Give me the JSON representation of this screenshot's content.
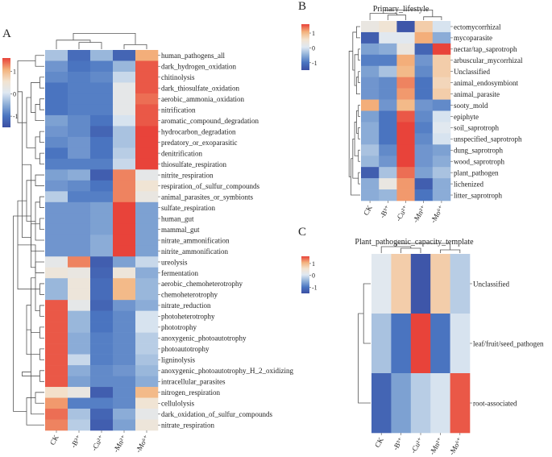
{
  "palette": [
    "#3b4fa3",
    "#4a75c1",
    "#8fb0d8",
    "#dfe8f2",
    "#f3e3cf",
    "#f3b27c",
    "#e8433a"
  ],
  "chart_data": [
    {
      "type": "heatmap",
      "panel_letter": "A",
      "title": "",
      "columns": [
        "CK",
        "-B³⁺",
        "-Cu²⁺",
        "-Mn²⁺",
        "-Mo⁶⁺"
      ],
      "rows": [
        "human_pathogens_all",
        "dark_hydrogen_oxidation",
        "chitinolysis",
        "dark_thiosulfate_oxidation",
        "aerobic_ammonia_oxidation",
        "nitrification",
        "aromatic_compound_degradation",
        "hydrocarbon_degradation",
        "predatory_or_exoparasitic",
        "denitrification",
        "thiosulfate_respiration",
        "nitrite_respiration",
        "respiration_of_sulfur_compounds",
        "animal_parasites_or_symbionts",
        "sulfate_respiration",
        "human_gut",
        "mammal_gut",
        "nitrate_ammonification",
        "nitrite_ammonification",
        "ureolysis",
        "fermentation",
        "aerobic_chemoheterotrophy",
        "chemoheterotrophy",
        "nitrate_reduction",
        "photoheterotrophy",
        "phototrophy",
        "anoxygenic_photoautotrophy",
        "photoautotrophy",
        "ligninolysis",
        "anoxygenic_photoautotrophy_H_2_oxidizing",
        "intracellular_parasites",
        "nitrogen_respiration",
        "cellulolysis",
        "dark_oxidation_of_sulfur_compounds",
        "nitrate_respiration"
      ],
      "values": [
        [
          -0.3,
          -1.1,
          -0.4,
          -1.2,
          1.1
        ],
        [
          -0.7,
          -1.0,
          -0.9,
          -0.4,
          1.5
        ],
        [
          -0.8,
          -0.9,
          -0.8,
          -0.1,
          1.5
        ],
        [
          -1.0,
          -0.9,
          -0.9,
          0.2,
          1.5
        ],
        [
          -1.0,
          -0.9,
          -0.9,
          0.2,
          1.4
        ],
        [
          -1.0,
          -0.9,
          -0.9,
          0.2,
          1.5
        ],
        [
          -0.6,
          -0.8,
          -1.0,
          0.0,
          1.5
        ],
        [
          -0.7,
          -0.8,
          -1.2,
          -0.3,
          1.6
        ],
        [
          -0.8,
          -0.7,
          -1.0,
          -0.3,
          1.6
        ],
        [
          -1.0,
          -0.7,
          -1.0,
          -0.2,
          1.6
        ],
        [
          -0.9,
          -0.9,
          -0.9,
          -0.1,
          1.6
        ],
        [
          -0.6,
          -0.5,
          -1.3,
          1.3,
          0.2
        ],
        [
          -0.7,
          -0.8,
          -1.0,
          1.3,
          0.5
        ],
        [
          -0.2,
          -0.9,
          -0.9,
          1.3,
          0.3
        ],
        [
          -0.7,
          -0.7,
          -0.6,
          1.6,
          -0.6
        ],
        [
          -0.7,
          -0.7,
          -0.6,
          1.6,
          -0.6
        ],
        [
          -0.7,
          -0.7,
          -0.6,
          1.6,
          -0.6
        ],
        [
          -0.7,
          -0.7,
          -0.5,
          1.6,
          -0.6
        ],
        [
          -0.7,
          -0.7,
          -0.5,
          1.6,
          -0.6
        ],
        [
          0.2,
          1.3,
          -1.3,
          -0.6,
          -0.1
        ],
        [
          0.4,
          0.3,
          -1.2,
          0.4,
          -0.5
        ],
        [
          -0.4,
          0.4,
          -1.1,
          1.0,
          -0.4
        ],
        [
          -0.4,
          0.4,
          -1.1,
          1.0,
          -0.4
        ],
        [
          1.5,
          0.2,
          -1.2,
          -0.7,
          -0.5
        ],
        [
          1.5,
          -0.4,
          -1.0,
          -0.8,
          0.0
        ],
        [
          1.5,
          -0.4,
          -1.0,
          -0.8,
          0.0
        ],
        [
          1.5,
          -0.5,
          -0.9,
          -0.8,
          -0.2
        ],
        [
          1.5,
          -0.5,
          -0.9,
          -0.8,
          -0.2
        ],
        [
          1.5,
          -0.1,
          -0.9,
          -0.8,
          -0.3
        ],
        [
          1.5,
          -0.5,
          -0.8,
          -0.7,
          -0.4
        ],
        [
          1.5,
          -0.6,
          -0.8,
          -0.8,
          -0.5
        ],
        [
          0.6,
          0.3,
          -1.3,
          -0.8,
          1.0
        ],
        [
          1.2,
          -0.9,
          -0.9,
          -0.8,
          0.5
        ],
        [
          1.4,
          -0.3,
          -1.2,
          -0.5,
          0.2
        ],
        [
          1.3,
          -0.2,
          -1.3,
          -0.6,
          0.4
        ]
      ],
      "legend_ticks": [
        "1",
        "0",
        "-1"
      ],
      "legend_tick_values": [
        1,
        0,
        -1
      ],
      "legend_range": [
        -1.5,
        1.6
      ]
    },
    {
      "type": "heatmap",
      "panel_letter": "B",
      "title": "Primary_lifestyle",
      "columns": [
        "CK",
        "-B³⁺",
        "-Cu²⁺",
        "-Mn²⁺",
        "-Mo⁶⁺"
      ],
      "rows": [
        "ectomycorrhizal",
        "mycoparasite",
        "nectar/tap_saprotroph",
        "arbuscular_mycorrhizal",
        "Unclassified",
        "animal_endosymbiont",
        "animal_parasite",
        "sooty_mold",
        "epiphyte",
        "soil_saprotroph",
        "unspecified_saprotroph",
        "dung_saprotroph",
        "wood_saprotroph",
        "plant_pathogen",
        "lichenized",
        "litter_saprotroph"
      ],
      "values": [
        [
          0.3,
          0.5,
          -1.4,
          0.8,
          0.0
        ],
        [
          -1.3,
          0.1,
          0.1,
          1.1,
          -0.5
        ],
        [
          -0.6,
          -0.5,
          0.3,
          -1.2,
          1.6
        ],
        [
          -0.9,
          -0.9,
          1.1,
          -0.7,
          0.8
        ],
        [
          -0.6,
          -0.3,
          1.0,
          -0.8,
          0.8
        ],
        [
          -0.7,
          -0.8,
          1.3,
          -1.0,
          0.7
        ],
        [
          -0.7,
          -0.8,
          1.2,
          -1.0,
          0.8
        ],
        [
          1.1,
          -0.7,
          1.0,
          -0.7,
          -0.8
        ],
        [
          -0.6,
          -1.0,
          1.5,
          -0.8,
          0.0
        ],
        [
          -0.5,
          -1.0,
          1.6,
          -0.9,
          0.1
        ],
        [
          -0.5,
          -1.0,
          1.6,
          -0.8,
          0.0
        ],
        [
          -0.3,
          -0.8,
          1.6,
          -0.7,
          -0.6
        ],
        [
          -0.4,
          -0.7,
          1.6,
          -0.7,
          -0.5
        ],
        [
          -1.3,
          -0.3,
          1.4,
          -0.6,
          -0.3
        ],
        [
          -0.5,
          0.3,
          1.2,
          -1.3,
          -0.5
        ],
        [
          -0.5,
          -0.4,
          1.2,
          -1.0,
          -0.5
        ]
      ],
      "legend_ticks": [
        "1",
        "0",
        "-1"
      ],
      "legend_tick_values": [
        1,
        0,
        -1
      ],
      "legend_range": [
        -1.5,
        1.6
      ]
    },
    {
      "type": "heatmap",
      "panel_letter": "C",
      "title": "Plant_pathogenic_capacity_template",
      "columns": [
        "CK",
        "-B³⁺",
        "-Cu²⁺",
        "-Mn²⁺",
        "-Mo⁶⁺"
      ],
      "rows": [
        "Unclassified",
        "leaf/fruit/seed_pathogen",
        "root-associated"
      ],
      "values": [
        [
          0.1,
          0.8,
          -1.4,
          0.8,
          -0.2
        ],
        [
          -0.3,
          -1.0,
          1.6,
          -1.0,
          0.0
        ],
        [
          -1.2,
          -0.6,
          -0.2,
          0.0,
          1.5
        ]
      ],
      "legend_ticks": [
        "1",
        "0",
        "-1"
      ],
      "legend_tick_values": [
        1,
        0,
        -1
      ],
      "legend_range": [
        -1.5,
        1.6
      ]
    }
  ]
}
